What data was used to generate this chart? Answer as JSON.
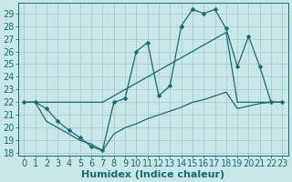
{
  "xlabel": "Humidex (Indice chaleur)",
  "bg_color": "#c8e8e8",
  "grid_color": "#a8cccc",
  "line_color": "#1a6b6b",
  "xlim": [
    -0.5,
    23.5
  ],
  "ylim": [
    17.8,
    29.8
  ],
  "yticks": [
    18,
    19,
    20,
    21,
    22,
    23,
    24,
    25,
    26,
    27,
    28,
    29
  ],
  "xticks": [
    0,
    1,
    2,
    3,
    4,
    5,
    6,
    7,
    8,
    9,
    10,
    11,
    12,
    13,
    14,
    15,
    16,
    17,
    18,
    19,
    20,
    21,
    22,
    23
  ],
  "curve1_x": [
    0,
    1,
    2,
    3,
    4,
    5,
    6,
    7,
    8,
    9,
    10,
    11,
    12,
    13,
    14,
    15,
    16,
    17,
    18,
    19,
    20,
    21,
    22,
    23
  ],
  "curve1_y": [
    22.0,
    22.0,
    21.5,
    20.5,
    19.8,
    19.2,
    18.5,
    18.2,
    22.0,
    22.3,
    26.0,
    26.7,
    22.5,
    23.3,
    28.0,
    29.3,
    29.0,
    29.3,
    27.8,
    24.8,
    27.2,
    24.8,
    22.0,
    22.0
  ],
  "curve2_x": [
    0,
    1,
    2,
    3,
    4,
    5,
    6,
    7,
    8,
    9,
    10,
    11,
    12,
    13,
    14,
    15,
    16,
    17,
    18,
    19,
    20,
    21,
    22,
    23
  ],
  "curve2_y": [
    22.0,
    22.0,
    22.0,
    22.0,
    22.0,
    22.0,
    22.0,
    22.0,
    22.5,
    23.0,
    23.5,
    24.0,
    24.5,
    25.0,
    25.5,
    26.0,
    26.5,
    27.0,
    27.5,
    22.0,
    22.0,
    22.0,
    22.0,
    22.0
  ],
  "curve3_x": [
    0,
    1,
    2,
    3,
    4,
    5,
    6,
    7,
    8,
    9,
    10,
    11,
    12,
    13,
    14,
    15,
    16,
    17,
    18,
    19,
    20,
    21,
    22,
    23
  ],
  "curve3_y": [
    22.0,
    22.0,
    20.5,
    20.0,
    19.5,
    19.0,
    18.7,
    18.2,
    19.5,
    20.0,
    20.3,
    20.7,
    21.0,
    21.3,
    21.6,
    22.0,
    22.2,
    22.5,
    22.8,
    21.5,
    21.7,
    21.9,
    22.0,
    22.0
  ],
  "markersize": 2.5,
  "linewidth": 0.9,
  "font_size": 7
}
